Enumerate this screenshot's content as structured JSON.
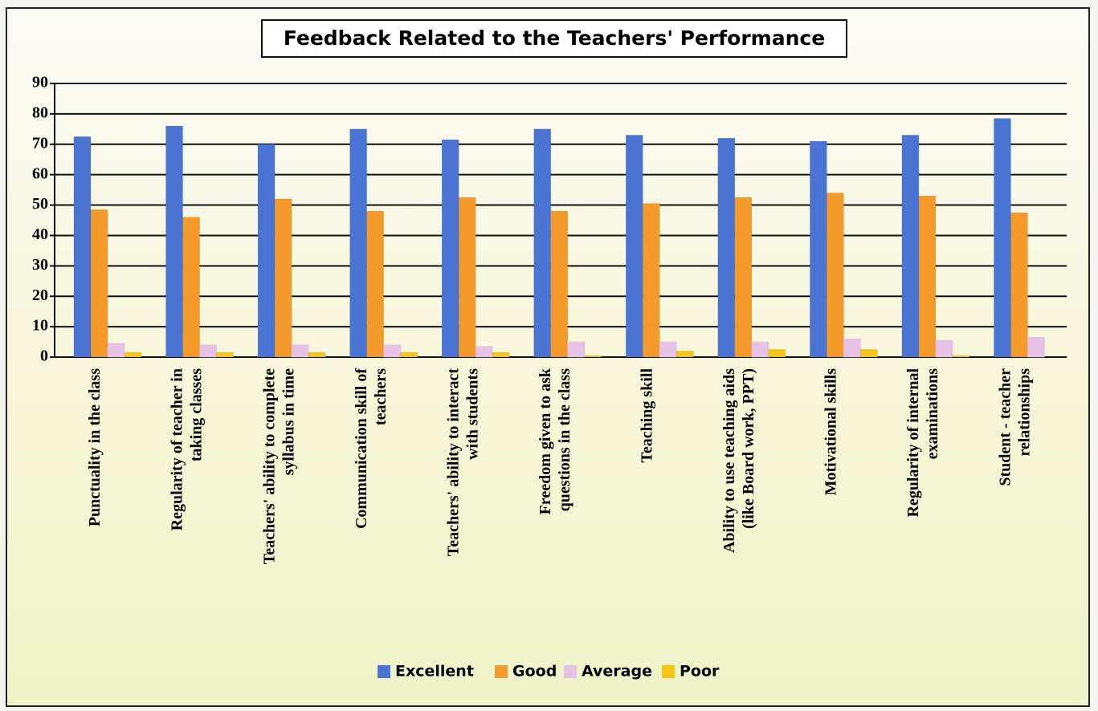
{
  "chart_data": {
    "type": "bar",
    "title": "Feedback Related to the Teachers' Performance",
    "categories": [
      "Punctuality in the class",
      "Regularity of teacher in\ntaking classes",
      "Teachers' ability to complete\nsyllabus in time",
      "Communication skill of\nteachers",
      "Teachers' ability to interact\nwith students",
      "Freedom given to ask\nquestions in the class",
      "Teaching skill",
      "Ability to use teaching aids\n(like Board work, PPT)",
      "Motivational skills",
      "Regularity of internal\nexaminations",
      "Student - teacher\nrelationships"
    ],
    "series": [
      {
        "name": "Excellent",
        "color": "#4a74d4",
        "values": [
          72.5,
          76,
          70,
          75,
          71.5,
          75,
          73,
          72,
          71,
          73,
          78.5
        ]
      },
      {
        "name": "Good",
        "color": "#f39a2a",
        "values": [
          48.5,
          46,
          52,
          48,
          52.5,
          48,
          50.5,
          52.5,
          54,
          53,
          47.5
        ]
      },
      {
        "name": "Average",
        "color": "#e6c3e6",
        "values": [
          4.5,
          4,
          4,
          4,
          3.5,
          5,
          5,
          5,
          6,
          5.5,
          6.5
        ]
      },
      {
        "name": "Poor",
        "color": "#f5c518",
        "values": [
          1.5,
          1.5,
          1.5,
          1.5,
          1.5,
          0.5,
          2,
          2.5,
          2.5,
          0.5,
          0
        ]
      }
    ],
    "ylim": [
      0,
      90
    ],
    "yticks": [
      0,
      10,
      20,
      30,
      40,
      50,
      60,
      70,
      80,
      90
    ],
    "grid": true,
    "legend": "bottom"
  }
}
